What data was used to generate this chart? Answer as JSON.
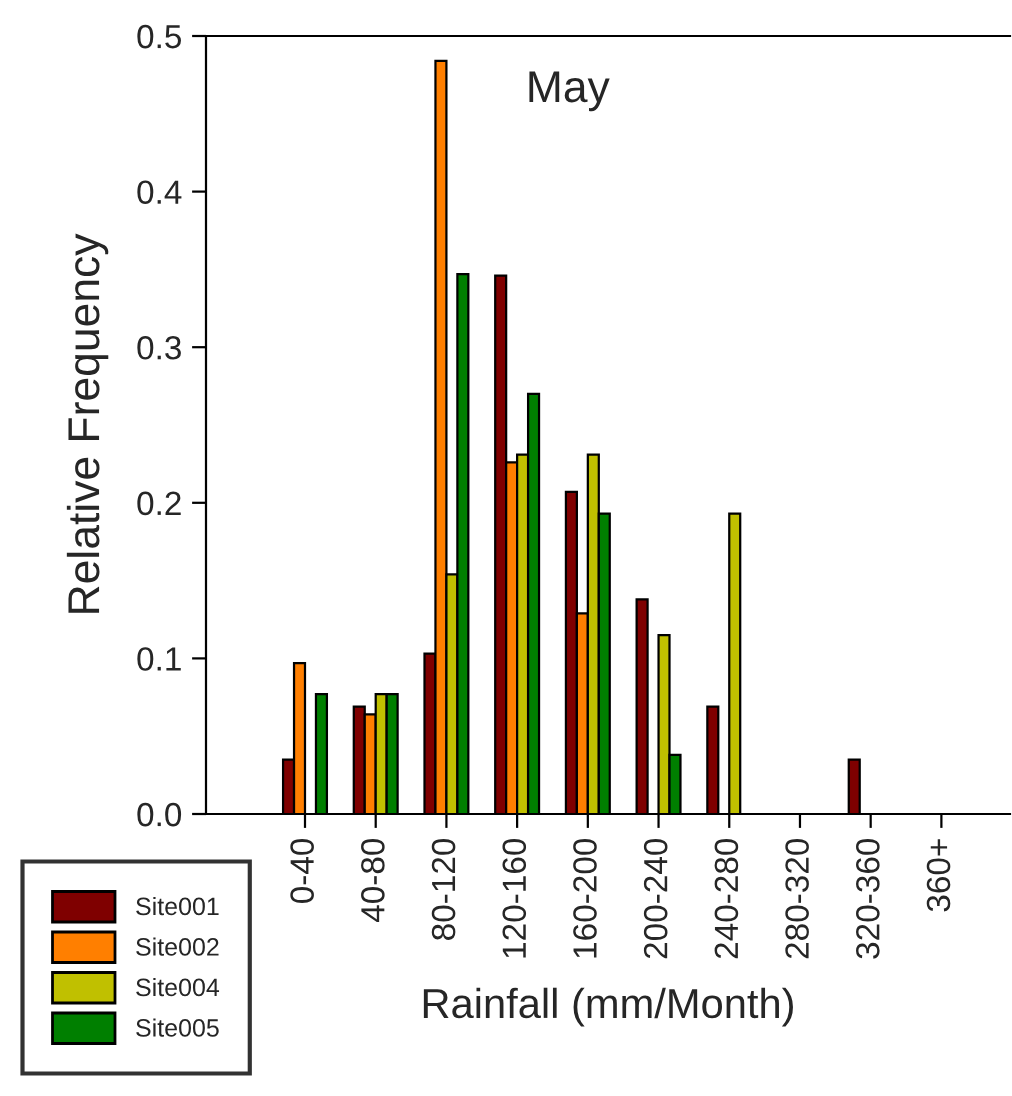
{
  "chart_data": {
    "type": "bar",
    "title": "May",
    "xlabel": "Rainfall (mm/Month)",
    "ylabel": "Relative Frequency",
    "categories": [
      "0-40",
      "40-80",
      "80-120",
      "120-160",
      "160-200",
      "200-240",
      "240-280",
      "280-320",
      "320-360",
      "360+"
    ],
    "series": [
      {
        "name": "Site001",
        "color": "#7f0000",
        "values": [
          0.035,
          0.069,
          0.103,
          0.346,
          0.207,
          0.138,
          0.069,
          null,
          0.035,
          null
        ]
      },
      {
        "name": "Site002",
        "color": "#ff7f00",
        "values": [
          0.097,
          0.064,
          0.484,
          0.226,
          0.129,
          null,
          null,
          null,
          null,
          null
        ]
      },
      {
        "name": "Site004",
        "color": "#c0c000",
        "values": [
          null,
          0.077,
          0.154,
          0.231,
          0.231,
          0.115,
          0.193,
          null,
          null,
          null
        ]
      },
      {
        "name": "Site005",
        "color": "#007f00",
        "values": [
          0.077,
          0.077,
          0.347,
          0.27,
          0.193,
          0.038,
          null,
          null,
          null,
          null
        ]
      }
    ],
    "ylim": [
      0,
      0.5
    ],
    "yticks": [
      {
        "value": 0,
        "label": "0.0"
      },
      {
        "value": 0.1,
        "label": "0.1"
      },
      {
        "value": 0.2,
        "label": "0.2"
      },
      {
        "value": 0.3,
        "label": "0.3"
      },
      {
        "value": 0.4,
        "label": "0.4"
      },
      {
        "value": 0.5,
        "label": "0.5"
      }
    ],
    "grid": false,
    "legend": "bottom left"
  }
}
